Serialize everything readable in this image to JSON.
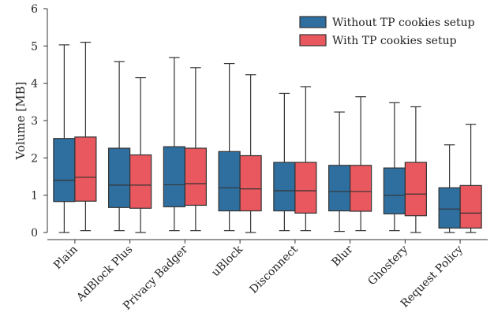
{
  "chart_data": {
    "type": "boxplot",
    "ylabel": "Volume [MB]",
    "ylim": [
      0,
      6
    ],
    "yticks": [
      0,
      1,
      2,
      3,
      4,
      5,
      6
    ],
    "categories": [
      "Plain",
      "AdBlock Plus",
      "Privacy Badger",
      "uBlock",
      "Disconnect",
      "Blur",
      "Ghostery",
      "Request Policy"
    ],
    "legend_position": "top-right",
    "grid": false,
    "series": [
      {
        "name": "Without TP cookies setup",
        "color": "#2f6f9f",
        "boxes": [
          {
            "min": 0.0,
            "q1": 0.83,
            "median": 1.4,
            "q3": 2.52,
            "max": 5.03
          },
          {
            "min": 0.05,
            "q1": 0.67,
            "median": 1.27,
            "q3": 2.26,
            "max": 4.58
          },
          {
            "min": 0.05,
            "q1": 0.69,
            "median": 1.28,
            "q3": 2.3,
            "max": 4.69
          },
          {
            "min": 0.05,
            "q1": 0.58,
            "median": 1.2,
            "q3": 2.17,
            "max": 4.53
          },
          {
            "min": 0.05,
            "q1": 0.58,
            "median": 1.12,
            "q3": 1.88,
            "max": 3.73
          },
          {
            "min": 0.03,
            "q1": 0.58,
            "median": 1.1,
            "q3": 1.8,
            "max": 3.23
          },
          {
            "min": 0.05,
            "q1": 0.5,
            "median": 1.0,
            "q3": 1.73,
            "max": 3.48
          },
          {
            "min": 0.0,
            "q1": 0.12,
            "median": 0.63,
            "q3": 1.2,
            "max": 2.35
          }
        ]
      },
      {
        "name": "With TP cookies setup",
        "color": "#e8585e",
        "boxes": [
          {
            "min": 0.05,
            "q1": 0.84,
            "median": 1.48,
            "q3": 2.56,
            "max": 5.1
          },
          {
            "min": 0.0,
            "q1": 0.65,
            "median": 1.27,
            "q3": 2.08,
            "max": 4.15
          },
          {
            "min": 0.05,
            "q1": 0.73,
            "median": 1.31,
            "q3": 2.26,
            "max": 4.42
          },
          {
            "min": 0.0,
            "q1": 0.58,
            "median": 1.17,
            "q3": 2.06,
            "max": 4.23
          },
          {
            "min": 0.05,
            "q1": 0.52,
            "median": 1.12,
            "q3": 1.88,
            "max": 3.91
          },
          {
            "min": 0.05,
            "q1": 0.57,
            "median": 1.1,
            "q3": 1.8,
            "max": 3.64
          },
          {
            "min": 0.0,
            "q1": 0.45,
            "median": 1.03,
            "q3": 1.88,
            "max": 3.37
          },
          {
            "min": 0.0,
            "q1": 0.12,
            "median": 0.52,
            "q3": 1.26,
            "max": 2.9
          }
        ]
      }
    ]
  }
}
